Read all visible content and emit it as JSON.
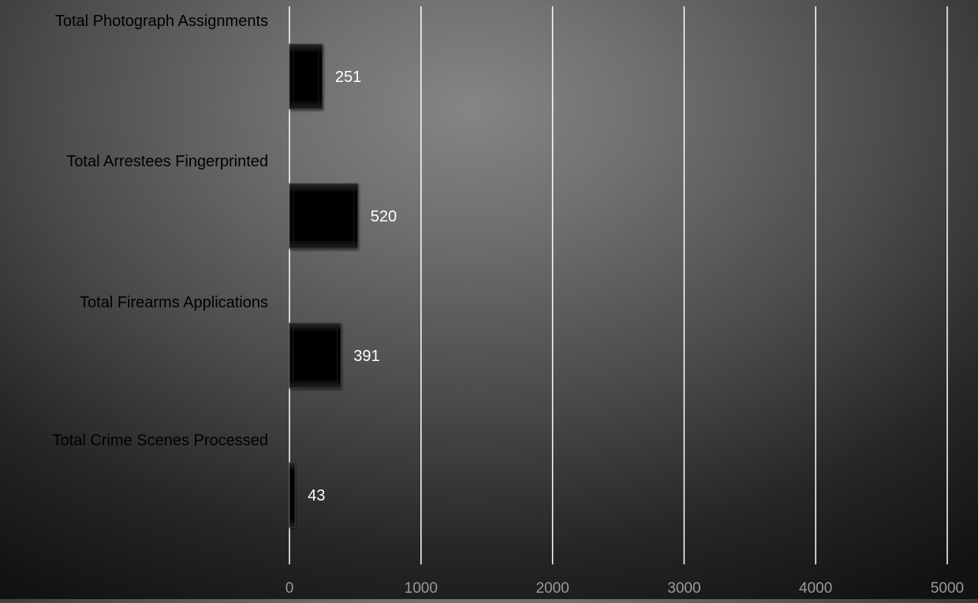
{
  "chart_data": {
    "type": "bar",
    "orientation": "horizontal",
    "title": "",
    "xlabel": "",
    "ylabel": "",
    "categories": [
      "Total Photograph Assignments",
      "Total Arrestees Fingerprinted",
      "Total Firearms Applications",
      "Total Crime Scenes Processed"
    ],
    "values": [
      251,
      520,
      391,
      43
    ],
    "data_labels": [
      "251",
      "520",
      "391",
      "43"
    ],
    "xlim": [
      0,
      5000
    ],
    "x_ticks": [
      0,
      1000,
      2000,
      3000,
      4000,
      5000
    ],
    "x_tick_labels": [
      "0",
      "1000",
      "2000",
      "3000",
      "4000",
      "5000"
    ],
    "grid": true,
    "legend": "none",
    "colors": {
      "bar_fill": "#0a0a0a",
      "bar_edge": "#3a3a3a",
      "gridline": "#ffffff",
      "category_label": "#000000",
      "data_label": "#ffffff",
      "tick_label": "#9a9a9a"
    }
  }
}
